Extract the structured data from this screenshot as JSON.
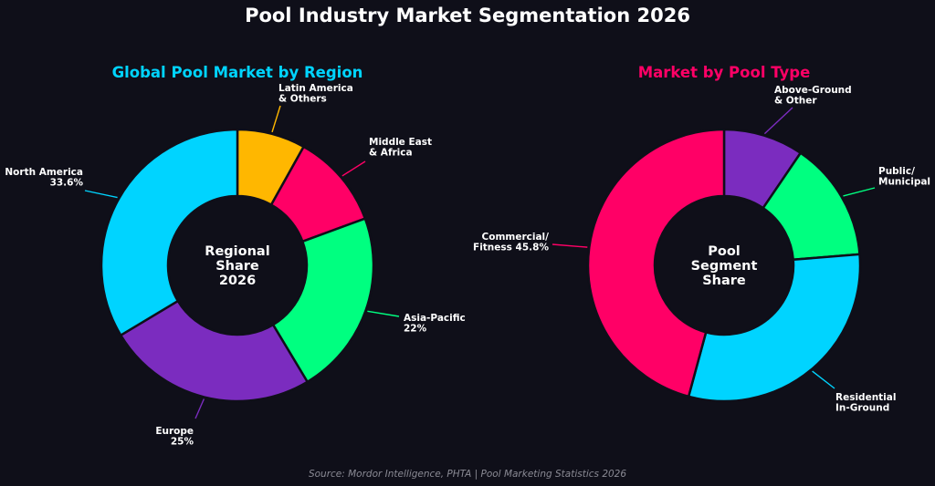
{
  "title": "Pool Industry Market Segmentation 2026",
  "source": "Source: Mordor Intelligence, PHTA | Pool Marketing Statistics 2026",
  "colors": {
    "background": "#0f0f19",
    "cyan": "#00d4ff",
    "pink": "#ff0066",
    "purple": "#7b2cbf",
    "green": "#00ff80",
    "amber": "#ffb700"
  },
  "chart_data": [
    {
      "type": "pie",
      "title": "Global Pool Market by Region",
      "title_color": "#00d4ff",
      "center_label": [
        "Regional",
        "Share",
        "2026"
      ],
      "slices": [
        {
          "label": [
            "Latin America",
            "& Others"
          ],
          "value": 8.1,
          "color": "#ffb700"
        },
        {
          "label": [
            "Middle East",
            "& Africa"
          ],
          "value": 11.3,
          "color": "#ff0066"
        },
        {
          "label": [
            "Asia-Pacific",
            "22%"
          ],
          "value": 22,
          "color": "#00ff80"
        },
        {
          "label": [
            "Europe",
            "25%"
          ],
          "value": 25,
          "color": "#7b2cbf"
        },
        {
          "label": [
            "North America",
            "33.6%"
          ],
          "value": 33.6,
          "color": "#00d4ff"
        }
      ]
    },
    {
      "type": "pie",
      "title": "Market by Pool Type",
      "title_color": "#ff0066",
      "center_label": [
        "Pool",
        "Segment",
        "Share"
      ],
      "slices": [
        {
          "label": [
            "Above-Ground",
            "& Other"
          ],
          "value": 9.5,
          "color": "#7b2cbf"
        },
        {
          "label": [
            "Public/",
            "Municipal"
          ],
          "value": 14.2,
          "color": "#00ff80"
        },
        {
          "label": [
            "Residential",
            "In-Ground"
          ],
          "value": 30.5,
          "color": "#00d4ff"
        },
        {
          "label": [
            "Commercial/",
            "Fitness 45.8%"
          ],
          "value": 45.8,
          "color": "#ff0066"
        }
      ]
    }
  ]
}
